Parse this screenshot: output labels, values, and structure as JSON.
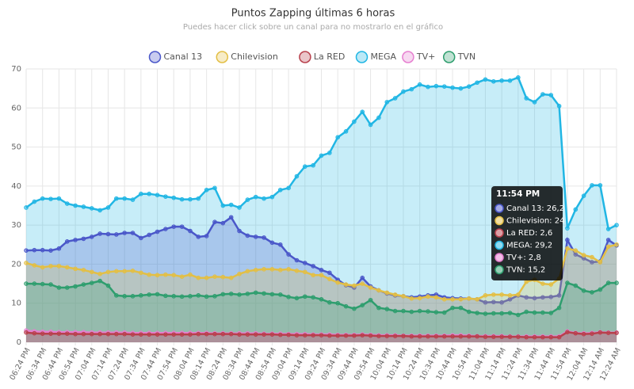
{
  "chart_data": {
    "type": "area",
    "title": "Puntos Zapping últimas 6 horas",
    "subtitle": "Puedes hacer click sobre un canal para no mostrarlo en el gráfico",
    "categories": [
      "06:24 PM",
      null,
      "06:34 PM",
      null,
      "06:44 PM",
      null,
      "06:54 PM",
      null,
      "07:04 PM",
      null,
      "07:14 PM",
      null,
      "07:24 PM",
      null,
      "07:34 PM",
      null,
      "07:44 PM",
      null,
      "07:54 PM",
      null,
      "08:04 PM",
      null,
      "08:14 PM",
      null,
      "08:24 PM",
      null,
      "08:34 PM",
      null,
      "08:44 PM",
      null,
      "08:54 PM",
      null,
      "09:04 PM",
      null,
      "09:14 PM",
      null,
      "09:24 PM",
      null,
      "09:34 PM",
      null,
      "09:44 PM",
      null,
      "09:54 PM",
      null,
      "10:04 PM",
      null,
      "10:14 PM",
      null,
      "10:24 PM",
      null,
      "10:34 PM",
      null,
      "10:44 PM",
      null,
      "10:54 PM",
      null,
      "11:04 PM",
      null,
      "11:14 PM",
      null,
      "11:24 PM",
      null,
      "11:34 PM",
      null,
      "11:44 PM",
      null,
      "11:54 PM",
      null,
      "12:04 AM",
      null,
      "12:14 AM",
      null,
      "12:24 AM"
    ],
    "series": [
      {
        "name": "Canal 13",
        "color": "#4a57c9",
        "values": [
          23.5,
          23.6,
          23.6,
          23.5,
          24,
          25.8,
          26.2,
          26.5,
          27,
          27.8,
          27.7,
          27.6,
          28,
          28,
          26.7,
          27.5,
          28.3,
          29,
          29.6,
          29.6,
          28.5,
          27,
          27.2,
          30.8,
          30.5,
          32,
          28.5,
          27.3,
          27,
          26.8,
          25.5,
          25,
          22.5,
          21,
          20.3,
          19.5,
          18.5,
          17.8,
          16,
          14.6,
          14,
          16.5,
          14.3,
          13.3,
          12.5,
          12,
          11.8,
          11.5,
          11.7,
          12,
          12.2,
          11.5,
          11.3,
          11.2,
          11.2,
          11,
          10.2,
          10.3,
          10.2,
          11,
          12,
          11.5,
          11.3,
          11.5,
          11.6,
          12,
          26.2,
          22.5,
          21.5,
          20.5,
          20.7,
          26.2,
          24.8
        ]
      },
      {
        "name": "Chilevision",
        "color": "#e3bf45",
        "values": [
          20.3,
          19.7,
          19.2,
          19.5,
          19.5,
          19.2,
          18.8,
          18.5,
          18,
          17.5,
          18,
          18.2,
          18.2,
          18.3,
          17.8,
          17.3,
          17.2,
          17.3,
          17.2,
          16.8,
          17.3,
          16.5,
          16.5,
          16.8,
          16.7,
          16.5,
          17.5,
          18.2,
          18.5,
          18.7,
          18.7,
          18.5,
          18.7,
          18.3,
          18,
          17.2,
          17.2,
          16.2,
          15.3,
          14.8,
          14.5,
          15,
          14,
          13.3,
          12.7,
          12.2,
          11.8,
          11.2,
          11.3,
          11.7,
          11.5,
          11,
          11,
          11,
          11.2,
          11,
          12,
          12.2,
          12.2,
          12,
          12.2,
          15.5,
          16,
          15,
          14.8,
          16.3,
          24,
          23.5,
          22.3,
          21.8,
          20.5,
          24.5,
          25
        ]
      },
      {
        "name": "La RED",
        "color": "#b8404c",
        "values": [
          2.5,
          2.3,
          2.2,
          2.2,
          2.2,
          2.2,
          2.1,
          2.1,
          2.1,
          2.1,
          2.1,
          2.1,
          2.1,
          2.0,
          2.0,
          2.0,
          2.0,
          2.0,
          2.0,
          2.0,
          2.0,
          2.1,
          2.1,
          2.1,
          2.1,
          2.1,
          2.0,
          2.0,
          2.0,
          2.0,
          2.0,
          1.9,
          1.9,
          1.8,
          1.8,
          1.8,
          1.8,
          1.7,
          1.7,
          1.7,
          1.7,
          1.8,
          1.7,
          1.6,
          1.6,
          1.6,
          1.6,
          1.5,
          1.5,
          1.5,
          1.5,
          1.5,
          1.5,
          1.5,
          1.5,
          1.5,
          1.4,
          1.4,
          1.4,
          1.4,
          1.4,
          1.3,
          1.3,
          1.3,
          1.3,
          1.3,
          2.6,
          2.3,
          2.1,
          2.2,
          2.5,
          2.4,
          2.4
        ]
      },
      {
        "name": "MEGA",
        "color": "#21b6e4",
        "values": [
          34.5,
          36,
          36.8,
          36.7,
          36.8,
          35.5,
          35,
          34.7,
          34.3,
          33.8,
          34.5,
          36.8,
          36.8,
          36.5,
          38,
          38,
          37.7,
          37.3,
          37,
          36.6,
          36.6,
          36.8,
          39,
          39.5,
          35,
          35.2,
          34.5,
          36.5,
          37.2,
          36.8,
          37.2,
          39,
          39.5,
          42.5,
          45,
          45.3,
          47.8,
          48.5,
          52.5,
          54,
          56.5,
          59,
          55.7,
          57.5,
          61.5,
          62.5,
          64.2,
          64.8,
          66,
          65.4,
          65.6,
          65.5,
          65.2,
          65,
          65.5,
          66.5,
          67.3,
          66.8,
          67,
          67,
          67.8,
          62.5,
          61.5,
          63.5,
          63.3,
          60.5,
          29.2,
          34,
          37.5,
          40.2,
          40.2,
          29,
          30
        ]
      },
      {
        "name": "TV+",
        "color": "#e67fd0",
        "values": [
          3.0,
          2.8,
          2.7,
          2.7,
          2.6,
          2.6,
          2.6,
          2.6,
          2.5,
          2.5,
          2.5,
          2.5,
          2.5,
          2.4,
          2.4,
          2.4,
          2.4,
          2.4,
          2.4,
          2.4,
          2.4,
          2.4,
          2.4,
          2.3,
          2.3,
          2.3,
          2.3,
          2.3,
          2.3,
          2.2,
          2.2,
          2.2,
          2.1,
          2.1,
          2.1,
          2.0,
          2.0,
          2.0,
          1.9,
          1.9,
          1.9,
          2.0,
          1.9,
          1.8,
          1.8,
          1.8,
          1.7,
          1.7,
          1.7,
          1.7,
          1.7,
          1.7,
          1.8,
          1.8,
          1.7,
          1.6,
          1.6,
          1.6,
          1.6,
          1.5,
          1.5,
          1.5,
          1.5,
          1.5,
          1.5,
          1.5,
          2.8,
          2.4,
          2.3,
          2.4,
          2.6,
          2.5,
          2.5
        ]
      },
      {
        "name": "TVN",
        "color": "#2e9e6e",
        "values": [
          15,
          15,
          14.9,
          14.8,
          14,
          14,
          14.3,
          14.8,
          15.2,
          15.7,
          14.5,
          12,
          11.8,
          11.8,
          12,
          12.2,
          12.3,
          11.9,
          11.8,
          11.7,
          11.8,
          12,
          11.7,
          11.8,
          12.3,
          12.4,
          12.2,
          12.4,
          12.7,
          12.5,
          12.3,
          12.2,
          11.6,
          11.3,
          11.7,
          11.5,
          11,
          10.2,
          10,
          9.2,
          8.6,
          9.5,
          10.8,
          8.8,
          8.5,
          8,
          8,
          7.8,
          8,
          7.9,
          7.7,
          7.6,
          8.8,
          8.8,
          7.8,
          7.5,
          7.3,
          7.4,
          7.4,
          7.5,
          7,
          7.8,
          7.6,
          7.6,
          7.5,
          8.8,
          15.2,
          14.5,
          13.2,
          12.8,
          13.5,
          15.2,
          15.2
        ]
      }
    ],
    "ylim": [
      0,
      70
    ],
    "yticks": [
      0,
      10,
      20,
      30,
      40,
      50,
      60,
      70
    ],
    "grid": true,
    "legend": "top",
    "tooltip": {
      "title": "11:54 PM",
      "items": [
        "Canal 13: 26,2",
        "Chilevision: 24",
        "La RED: 2,6",
        "MEGA: 29,2",
        "TV+: 2,8",
        "TVN: 15,2"
      ]
    }
  }
}
